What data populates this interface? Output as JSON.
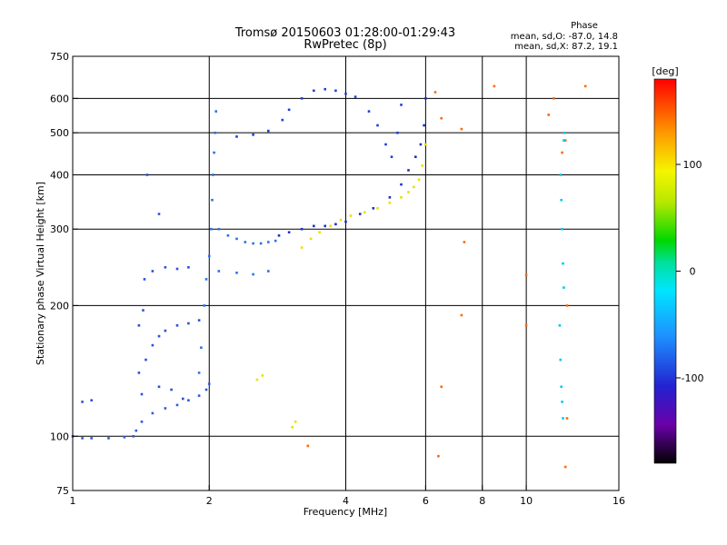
{
  "header": {
    "title": "Tromsø 20150603 01:28:00-01:29:43",
    "subtitle": "RwPretec (8p)",
    "phase_title": "Phase",
    "phase_o": "mean, sd,O: -87.0, 14.8",
    "phase_x": "mean, sd,X:  87.2, 19.1"
  },
  "chart_data": {
    "type": "scatter",
    "title": "Tromsø 20150603 01:28:00-01:29:43",
    "subtitle": "RwPretec (8p)",
    "xlabel": "Frequency [MHz]",
    "ylabel": "Stationary phase Virtual Height [km]",
    "x_scale": "log",
    "y_scale": "log",
    "xlim": [
      1,
      16
    ],
    "ylim": [
      75,
      750
    ],
    "x_ticks": [
      1,
      2,
      4,
      6,
      8,
      10,
      16
    ],
    "y_ticks": [
      75,
      100,
      200,
      300,
      400,
      500,
      600,
      750
    ],
    "x_grid": [
      2,
      4,
      6,
      8,
      10
    ],
    "y_grid": [
      100,
      200,
      300,
      400,
      500,
      600
    ],
    "grid": true,
    "colorbar": {
      "label": "[deg]",
      "range": [
        -180,
        180
      ],
      "ticks": [
        100,
        0,
        -100
      ],
      "colors": [
        "#000000",
        "#6a00a8",
        "#1f1fd0",
        "#1e90ff",
        "#00e5ff",
        "#00d800",
        "#b8e800",
        "#f5f500",
        "#ff9900",
        "#ff0000"
      ]
    },
    "series": [
      {
        "trace": "o-low-E",
        "color": "#2f58e0",
        "points": [
          [
            1.0,
            100
          ],
          [
            1.05,
            99
          ],
          [
            1.1,
            99
          ],
          [
            1.2,
            99
          ],
          [
            1.3,
            99.5
          ],
          [
            1.36,
            100
          ],
          [
            1.38,
            103
          ],
          [
            1.42,
            108
          ],
          [
            1.5,
            113
          ],
          [
            1.6,
            116
          ],
          [
            1.7,
            118
          ],
          [
            1.8,
            121
          ],
          [
            1.9,
            124
          ],
          [
            1.97,
            128
          ],
          [
            2.0,
            132
          ]
        ]
      },
      {
        "trace": "o-E-range-spread",
        "color": "#2b4fdc",
        "points": [
          [
            1.05,
            120
          ],
          [
            1.1,
            121
          ],
          [
            1.4,
            140
          ],
          [
            1.45,
            150
          ],
          [
            1.5,
            162
          ],
          [
            1.55,
            170
          ],
          [
            1.6,
            175
          ],
          [
            1.7,
            180
          ],
          [
            1.8,
            182
          ],
          [
            1.9,
            185
          ],
          [
            1.42,
            125
          ],
          [
            1.55,
            130
          ],
          [
            1.65,
            128
          ],
          [
            1.75,
            122
          ],
          [
            1.4,
            180
          ],
          [
            1.43,
            195
          ],
          [
            1.44,
            230
          ],
          [
            1.5,
            240
          ],
          [
            1.6,
            245
          ],
          [
            1.7,
            243
          ],
          [
            1.8,
            245
          ],
          [
            1.46,
            400
          ],
          [
            1.55,
            325
          ]
        ]
      },
      {
        "trace": "o-F-trace-2MHz",
        "color": "#2a72e8",
        "points": [
          [
            1.9,
            140
          ],
          [
            1.92,
            160
          ],
          [
            1.95,
            200
          ],
          [
            1.97,
            230
          ],
          [
            2.0,
            260
          ],
          [
            2.02,
            300
          ],
          [
            2.03,
            350
          ],
          [
            2.04,
            400
          ],
          [
            2.05,
            450
          ],
          [
            2.06,
            500
          ],
          [
            2.07,
            560
          ],
          [
            2.1,
            300
          ],
          [
            2.2,
            290
          ],
          [
            2.3,
            285
          ],
          [
            2.4,
            280
          ],
          [
            2.5,
            278
          ],
          [
            2.6,
            278
          ],
          [
            2.7,
            280
          ],
          [
            2.8,
            282
          ],
          [
            2.1,
            240
          ],
          [
            2.3,
            238
          ],
          [
            2.5,
            236
          ],
          [
            2.7,
            240
          ]
        ]
      },
      {
        "trace": "o-F2-upper",
        "color": "#1f3fd8",
        "points": [
          [
            2.3,
            490
          ],
          [
            2.5,
            495
          ],
          [
            2.7,
            505
          ],
          [
            2.9,
            535
          ],
          [
            3.0,
            565
          ],
          [
            3.2,
            600
          ],
          [
            3.4,
            625
          ],
          [
            3.6,
            630
          ],
          [
            3.8,
            625
          ],
          [
            4.0,
            615
          ],
          [
            4.2,
            605
          ],
          [
            4.5,
            560
          ],
          [
            4.7,
            520
          ],
          [
            4.9,
            470
          ],
          [
            5.05,
            440
          ],
          [
            5.2,
            500
          ],
          [
            5.3,
            580
          ]
        ]
      },
      {
        "trace": "o-F2-lower",
        "color": "#1e30c8",
        "points": [
          [
            2.85,
            290
          ],
          [
            3.0,
            295
          ],
          [
            3.2,
            300
          ],
          [
            3.4,
            305
          ],
          [
            3.6,
            305
          ],
          [
            3.8,
            308
          ],
          [
            4.0,
            312
          ],
          [
            4.3,
            325
          ],
          [
            4.6,
            335
          ],
          [
            5.0,
            355
          ],
          [
            5.3,
            380
          ],
          [
            5.5,
            410
          ],
          [
            5.7,
            440
          ],
          [
            5.85,
            470
          ],
          [
            5.95,
            520
          ],
          [
            6.0,
            600
          ]
        ]
      },
      {
        "trace": "x-trace",
        "color": "#e8e000",
        "points": [
          [
            3.2,
            272
          ],
          [
            3.35,
            285
          ],
          [
            3.5,
            295
          ],
          [
            3.7,
            305
          ],
          [
            3.9,
            315
          ],
          [
            4.1,
            322
          ],
          [
            4.4,
            328
          ],
          [
            4.7,
            335
          ],
          [
            5.0,
            345
          ],
          [
            5.3,
            355
          ],
          [
            5.5,
            365
          ],
          [
            5.65,
            375
          ],
          [
            5.8,
            390
          ],
          [
            5.9,
            420
          ],
          [
            6.0,
            470
          ],
          [
            2.55,
            135
          ],
          [
            2.62,
            138
          ],
          [
            3.05,
            105
          ],
          [
            3.1,
            108
          ]
        ]
      },
      {
        "trace": "scattered-noise",
        "color": "#ff6a00",
        "points": [
          [
            6.3,
            620
          ],
          [
            6.5,
            540
          ],
          [
            7.2,
            510
          ],
          [
            7.3,
            280
          ],
          [
            7.2,
            190
          ],
          [
            8.5,
            640
          ],
          [
            10.0,
            235
          ],
          [
            10.0,
            180
          ],
          [
            11.2,
            550
          ],
          [
            11.5,
            600
          ],
          [
            12.0,
            450
          ],
          [
            12.2,
            480
          ],
          [
            12.3,
            200
          ],
          [
            12.3,
            110
          ],
          [
            12.2,
            85
          ],
          [
            13.5,
            640
          ],
          [
            6.4,
            90
          ],
          [
            6.5,
            130
          ],
          [
            3.3,
            95
          ]
        ]
      },
      {
        "trace": "cyan-vertical-12MHz",
        "color": "#00c8f0",
        "points": [
          [
            11.9,
            400
          ],
          [
            11.95,
            350
          ],
          [
            12.0,
            300
          ],
          [
            12.05,
            250
          ],
          [
            12.1,
            220
          ],
          [
            11.85,
            180
          ],
          [
            11.9,
            150
          ],
          [
            11.95,
            130
          ],
          [
            12.0,
            120
          ],
          [
            12.05,
            110
          ],
          [
            12.1,
            480
          ],
          [
            12.15,
            500
          ]
        ]
      }
    ]
  },
  "colors": {
    "background": "#ffffff",
    "frame": "#000000",
    "grid": "#000000"
  }
}
